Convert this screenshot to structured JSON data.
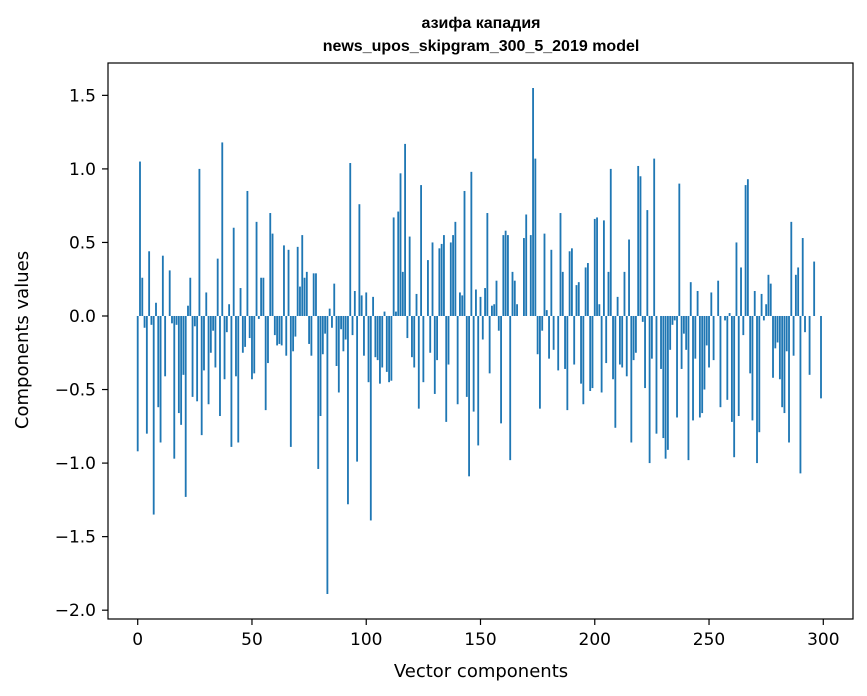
{
  "chart_data": {
    "type": "bar",
    "title": "азифа кападия",
    "subtitle": "news_upos_skipgram_300_5_2019 model",
    "xlabel": "Vector components",
    "ylabel": "Components values",
    "xlim": [
      -13,
      313
    ],
    "ylim": [
      -2.06,
      1.72
    ],
    "xticks": [
      0,
      50,
      100,
      150,
      200,
      250,
      300
    ],
    "yticks": [
      1.5,
      1.0,
      0.5,
      0.0,
      -0.5,
      -1.0,
      -1.5,
      -2.0
    ],
    "ytick_labels": [
      "1.5",
      "1.0",
      "0.5",
      "0.0",
      "−0.5",
      "−1.0",
      "−1.5",
      "−2.0"
    ],
    "grid": false,
    "bar_color": "#1f77b4",
    "values": [
      -0.92,
      1.05,
      0.26,
      -0.08,
      -0.8,
      0.44,
      -0.06,
      -1.35,
      0.09,
      -0.62,
      -0.86,
      0.41,
      -0.41,
      0.0,
      0.31,
      -0.05,
      -0.97,
      -0.06,
      -0.66,
      -0.74,
      -0.4,
      -1.23,
      0.07,
      0.26,
      -0.55,
      -0.07,
      -0.58,
      1.0,
      -0.81,
      -0.37,
      0.16,
      -0.6,
      -0.25,
      -0.1,
      -0.35,
      0.39,
      -0.68,
      1.18,
      -0.43,
      -0.11,
      0.08,
      -0.89,
      0.6,
      -0.41,
      -0.86,
      0.19,
      -0.25,
      -0.21,
      0.85,
      -0.15,
      -0.43,
      -0.39,
      0.64,
      -0.02,
      0.26,
      0.26,
      -0.64,
      -0.32,
      0.7,
      0.56,
      -0.13,
      -0.2,
      -0.19,
      -0.2,
      0.48,
      -0.27,
      0.45,
      -0.89,
      -0.24,
      -0.14,
      0.47,
      0.2,
      0.55,
      0.26,
      0.3,
      -0.19,
      -0.27,
      0.29,
      0.29,
      -1.04,
      -0.68,
      -0.26,
      -0.12,
      -1.89,
      0.05,
      -0.08,
      0.22,
      -0.34,
      -0.52,
      -0.09,
      -0.24,
      -0.16,
      -1.28,
      1.04,
      -0.13,
      0.17,
      -0.99,
      0.76,
      0.14,
      -0.27,
      0.16,
      -0.45,
      -1.39,
      0.13,
      -0.28,
      -0.3,
      -0.46,
      -0.35,
      0.03,
      -0.38,
      -0.45,
      -0.44,
      0.67,
      0.03,
      0.71,
      0.97,
      0.3,
      1.17,
      -0.15,
      0.54,
      -0.28,
      -0.35,
      0.15,
      -0.63,
      0.89,
      -0.45,
      0.0,
      0.38,
      -0.25,
      0.5,
      -0.53,
      -0.3,
      0.46,
      0.49,
      0.55,
      -0.72,
      -0.33,
      0.5,
      0.55,
      0.64,
      -0.6,
      0.16,
      0.14,
      0.85,
      -0.55,
      -1.09,
      0.98,
      -0.65,
      0.18,
      -0.88,
      0.13,
      -0.16,
      0.19,
      0.7,
      -0.39,
      0.07,
      0.08,
      0.24,
      -0.1,
      -0.73,
      0.55,
      0.58,
      0.55,
      -0.98,
      0.3,
      0.24,
      0.08,
      0.0,
      0.0,
      0.53,
      0.69,
      0.0,
      0.55,
      1.55,
      1.07,
      -0.26,
      -0.63,
      -0.1,
      0.56,
      0.04,
      -0.29,
      0.45,
      -0.23,
      0.0,
      -0.37,
      0.7,
      0.3,
      -0.36,
      -0.64,
      0.44,
      0.46,
      -0.33,
      0.21,
      0.23,
      -0.46,
      -0.6,
      0.33,
      0.36,
      -0.51,
      -0.49,
      0.66,
      0.67,
      0.08,
      -0.52,
      0.65,
      -0.32,
      0.3,
      1.0,
      -0.43,
      -0.76,
      0.13,
      -0.33,
      -0.35,
      0.3,
      -0.41,
      0.52,
      -0.86,
      -0.3,
      -0.25,
      1.02,
      0.95,
      -0.04,
      -0.49,
      0.72,
      -1.0,
      -0.29,
      1.07,
      -0.8,
      0.0,
      -0.36,
      -0.83,
      -0.97,
      -0.91,
      -0.23,
      -0.06,
      -0.03,
      -0.69,
      0.9,
      -0.36,
      -0.12,
      -0.23,
      -0.98,
      0.23,
      -0.71,
      -0.29,
      0.17,
      -0.69,
      -0.66,
      -0.5,
      -0.2,
      -0.35,
      0.16,
      -0.3,
      0.0,
      0.24,
      -0.62,
      0.0,
      -0.03,
      -0.57,
      0.02,
      -0.72,
      -0.96,
      0.5,
      -0.68,
      0.33,
      -0.13,
      0.89,
      0.93,
      -0.39,
      -0.71,
      0.17,
      -1.0,
      -0.79,
      0.15,
      -0.03,
      0.08,
      0.28,
      0.22,
      -0.42,
      -0.22,
      -0.18,
      -0.43,
      -0.62,
      -0.66,
      -0.24,
      -0.86,
      0.64,
      -0.27,
      0.28,
      0.33,
      -1.07,
      0.53,
      -0.11,
      0.0,
      -0.4,
      0.0,
      0.37,
      0.0,
      0.0,
      -0.56
    ]
  }
}
